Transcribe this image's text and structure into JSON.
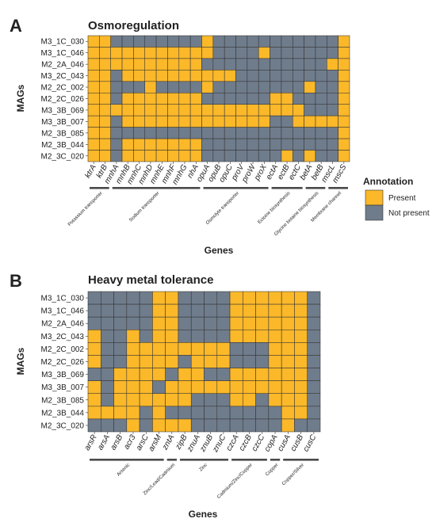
{
  "colors": {
    "present": "#FBB829",
    "absent": "#6F7C8C",
    "cell_border": "#333333",
    "text": "#222222",
    "bracket": "#4a4a4a"
  },
  "legend": {
    "title": "Annotation",
    "items": [
      {
        "label": "Present",
        "value": 1
      },
      {
        "label": "Not present",
        "value": 0
      }
    ]
  },
  "chart_data": [
    {
      "type": "heatmap",
      "panel_label": "A",
      "title": "Osmoregulation",
      "xlabel": "Genes",
      "ylabel": "MAGs",
      "rows": [
        "M3_1C_030",
        "M3_1C_046",
        "M2_2A_046",
        "M3_2C_043",
        "M2_2C_002",
        "M2_2C_026",
        "M3_3B_069",
        "M3_3B_007",
        "M2_3B_085",
        "M2_3B_044",
        "M2_3C_020"
      ],
      "columns": [
        "ktrA",
        "ktrB",
        "mnhA",
        "mnhB",
        "mnhC",
        "mnhD",
        "mnhE",
        "mnhF",
        "mnhG",
        "nhA",
        "opuA",
        "opuB",
        "opuC",
        "proV",
        "proW",
        "proX",
        "ectA",
        "ectB",
        "ectC",
        "betA",
        "betB",
        "mscL",
        "mscS"
      ],
      "groups": [
        {
          "label": "Potassium transporter",
          "start": 0,
          "end": 1
        },
        {
          "label": "Sodium transporter",
          "start": 2,
          "end": 9
        },
        {
          "label": "Osmolyte transporter",
          "start": 10,
          "end": 15
        },
        {
          "label": "Ectoine biosynthesis",
          "start": 16,
          "end": 18
        },
        {
          "label": "Glycine betaine biosynthesis",
          "start": 19,
          "end": 20
        },
        {
          "label": "Membrane channel",
          "start": 21,
          "end": 22
        }
      ],
      "values": [
        [
          1,
          1,
          0,
          0,
          0,
          0,
          0,
          0,
          0,
          0,
          1,
          0,
          0,
          0,
          0,
          0,
          0,
          0,
          0,
          0,
          0,
          0,
          1
        ],
        [
          1,
          1,
          1,
          1,
          1,
          1,
          1,
          1,
          1,
          1,
          1,
          0,
          0,
          0,
          0,
          1,
          0,
          0,
          0,
          0,
          0,
          0,
          1
        ],
        [
          1,
          1,
          1,
          1,
          1,
          1,
          1,
          1,
          1,
          1,
          0,
          0,
          0,
          0,
          0,
          0,
          0,
          0,
          0,
          0,
          0,
          1,
          1
        ],
        [
          1,
          1,
          0,
          1,
          1,
          1,
          1,
          1,
          1,
          1,
          1,
          1,
          1,
          0,
          0,
          0,
          0,
          0,
          0,
          0,
          0,
          0,
          1
        ],
        [
          1,
          1,
          0,
          0,
          0,
          1,
          0,
          0,
          0,
          0,
          1,
          0,
          0,
          0,
          0,
          0,
          0,
          0,
          0,
          1,
          0,
          0,
          1
        ],
        [
          1,
          1,
          0,
          1,
          1,
          1,
          1,
          1,
          1,
          1,
          0,
          0,
          0,
          0,
          0,
          0,
          1,
          1,
          0,
          0,
          0,
          0,
          1
        ],
        [
          1,
          1,
          1,
          1,
          1,
          1,
          1,
          1,
          1,
          1,
          1,
          1,
          1,
          1,
          1,
          1,
          1,
          1,
          1,
          0,
          0,
          0,
          1
        ],
        [
          1,
          1,
          0,
          1,
          1,
          1,
          1,
          1,
          1,
          1,
          1,
          1,
          1,
          1,
          1,
          1,
          0,
          0,
          1,
          1,
          1,
          1,
          1
        ],
        [
          1,
          1,
          0,
          0,
          0,
          0,
          0,
          0,
          0,
          0,
          0,
          0,
          0,
          0,
          0,
          0,
          0,
          0,
          0,
          0,
          0,
          0,
          1
        ],
        [
          1,
          1,
          0,
          1,
          1,
          1,
          1,
          1,
          1,
          1,
          0,
          0,
          0,
          0,
          0,
          0,
          0,
          0,
          0,
          0,
          0,
          0,
          1
        ],
        [
          1,
          1,
          0,
          1,
          1,
          1,
          1,
          1,
          1,
          1,
          0,
          0,
          0,
          0,
          0,
          0,
          0,
          1,
          0,
          1,
          0,
          0,
          1
        ]
      ]
    },
    {
      "type": "heatmap",
      "panel_label": "B",
      "title": "Heavy metal tolerance",
      "xlabel": "Genes",
      "ylabel": "MAGs",
      "rows": [
        "M3_1C_030",
        "M3_1C_046",
        "M2_2A_046",
        "M3_2C_043",
        "M2_2C_002",
        "M2_2C_026",
        "M3_3B_069",
        "M3_3B_007",
        "M2_3B_085",
        "M2_3B_044",
        "M2_3C_020"
      ],
      "columns": [
        "arsR",
        "arsA",
        "arsB",
        "acr3",
        "arsC",
        "arsM",
        "zntA",
        "zipB",
        "znuA",
        "znuB",
        "znuC",
        "czcA",
        "czcB",
        "czcC",
        "copA",
        "cusA",
        "cusB",
        "cusC"
      ],
      "groups": [
        {
          "label": "Arsenic",
          "start": 0,
          "end": 5
        },
        {
          "label": "Zinc/Lead/Cadmium",
          "start": 6,
          "end": 6
        },
        {
          "label": "Zinc",
          "start": 7,
          "end": 10
        },
        {
          "label": "Cadmium/Zinc/Copper",
          "start": 11,
          "end": 13
        },
        {
          "label": "Copper",
          "start": 14,
          "end": 14
        },
        {
          "label": "Copper/Silver",
          "start": 15,
          "end": 17
        }
      ],
      "values": [
        [
          0,
          0,
          0,
          0,
          0,
          1,
          1,
          0,
          0,
          0,
          0,
          1,
          1,
          1,
          1,
          1,
          1,
          0
        ],
        [
          0,
          0,
          0,
          0,
          0,
          1,
          1,
          0,
          0,
          0,
          0,
          1,
          1,
          1,
          1,
          1,
          1,
          0
        ],
        [
          0,
          0,
          0,
          0,
          0,
          1,
          1,
          0,
          0,
          0,
          0,
          1,
          1,
          1,
          1,
          1,
          1,
          0
        ],
        [
          1,
          0,
          0,
          1,
          0,
          1,
          1,
          0,
          0,
          0,
          0,
          1,
          1,
          1,
          1,
          1,
          1,
          0
        ],
        [
          1,
          0,
          0,
          1,
          1,
          1,
          1,
          1,
          1,
          1,
          1,
          0,
          0,
          0,
          1,
          1,
          1,
          0
        ],
        [
          1,
          0,
          0,
          1,
          1,
          1,
          1,
          0,
          1,
          1,
          1,
          0,
          0,
          0,
          1,
          1,
          1,
          0
        ],
        [
          0,
          0,
          1,
          1,
          1,
          1,
          0,
          1,
          1,
          0,
          0,
          1,
          1,
          1,
          1,
          1,
          1,
          0
        ],
        [
          1,
          0,
          1,
          1,
          1,
          0,
          1,
          1,
          1,
          1,
          1,
          1,
          1,
          1,
          1,
          1,
          1,
          0
        ],
        [
          1,
          0,
          1,
          1,
          1,
          1,
          1,
          1,
          0,
          0,
          0,
          1,
          1,
          0,
          1,
          1,
          1,
          0
        ],
        [
          1,
          1,
          1,
          1,
          0,
          1,
          0,
          0,
          0,
          0,
          0,
          0,
          0,
          0,
          0,
          1,
          1,
          0
        ],
        [
          0,
          0,
          0,
          1,
          0,
          1,
          1,
          1,
          0,
          0,
          0,
          0,
          0,
          0,
          0,
          1,
          0,
          0
        ]
      ]
    }
  ]
}
